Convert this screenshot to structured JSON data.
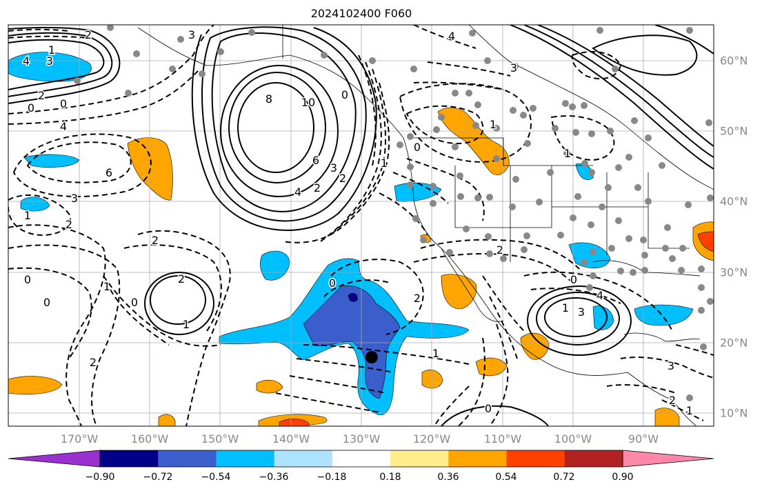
{
  "title": "2024102400 F060",
  "lon_labels": [
    "170°W",
    "160°W",
    "150°W",
    "140°W",
    "130°W",
    "120°W",
    "110°W",
    "100°W",
    "90°W"
  ],
  "lat_labels": [
    "60°N",
    "50°N",
    "40°N",
    "30°N",
    "20°N",
    "10°N"
  ],
  "colorbar": {
    "ticks": [
      "−0.90",
      "−0.72",
      "−0.54",
      "−0.36",
      "−0.18",
      "0.18",
      "0.36",
      "0.54",
      "0.72",
      "0.90"
    ],
    "colors": [
      "#9b30d0",
      "#000088",
      "#3a5fcd",
      "#00bfff",
      "#aee3ff",
      "#ffffff",
      "#ffec8b",
      "#ffa500",
      "#ff4000",
      "#b22222",
      "#ff88aa"
    ]
  },
  "contour_labels": [
    {
      "text": "2",
      "name": "contour-label"
    },
    {
      "text": "4",
      "name": "contour-label"
    },
    {
      "text": "3",
      "name": "contour-label"
    },
    {
      "text": "1",
      "name": "contour-label"
    },
    {
      "text": "2",
      "name": "contour-label"
    },
    {
      "text": "0",
      "name": "contour-label"
    },
    {
      "text": "0",
      "name": "contour-label"
    },
    {
      "text": "4",
      "name": "contour-label"
    },
    {
      "text": "3",
      "name": "contour-label"
    },
    {
      "text": "8",
      "name": "contour-label"
    },
    {
      "text": "10",
      "name": "contour-label"
    },
    {
      "text": "6",
      "name": "contour-label"
    },
    {
      "text": "3",
      "name": "contour-label"
    },
    {
      "text": "4",
      "name": "contour-label"
    },
    {
      "text": "2",
      "name": "contour-label"
    },
    {
      "text": "6",
      "name": "contour-label"
    },
    {
      "text": "3",
      "name": "contour-label"
    },
    {
      "text": "1",
      "name": "contour-label"
    },
    {
      "text": "2",
      "name": "contour-label"
    },
    {
      "text": "2",
      "name": "contour-label"
    },
    {
      "text": "1",
      "name": "contour-label"
    },
    {
      "text": "0",
      "name": "contour-label"
    },
    {
      "text": "0",
      "name": "contour-label"
    },
    {
      "text": "1",
      "name": "contour-label"
    },
    {
      "text": "2",
      "name": "contour-label"
    },
    {
      "text": "0",
      "name": "contour-label"
    },
    {
      "text": "2",
      "name": "contour-label"
    },
    {
      "text": "0",
      "name": "contour-label"
    },
    {
      "text": "2",
      "name": "contour-label"
    },
    {
      "text": "1",
      "name": "contour-label"
    },
    {
      "text": "0",
      "name": "contour-label"
    },
    {
      "text": "1",
      "name": "contour-label"
    },
    {
      "text": "2",
      "name": "contour-label"
    },
    {
      "text": "0",
      "name": "contour-label"
    },
    {
      "text": "1",
      "name": "contour-label"
    },
    {
      "text": "2",
      "name": "contour-label"
    },
    {
      "text": "1",
      "name": "contour-label"
    },
    {
      "text": "0",
      "name": "contour-label"
    },
    {
      "text": "4",
      "name": "contour-label"
    },
    {
      "text": "3",
      "name": "contour-label"
    },
    {
      "text": "1",
      "name": "contour-label"
    },
    {
      "text": "3",
      "name": "contour-label"
    },
    {
      "text": "2",
      "name": "contour-label"
    },
    {
      "text": "1",
      "name": "contour-label"
    },
    {
      "text": "0",
      "name": "contour-label"
    },
    {
      "text": "4",
      "name": "contour-label"
    },
    {
      "text": "3",
      "name": "contour-label"
    }
  ]
}
